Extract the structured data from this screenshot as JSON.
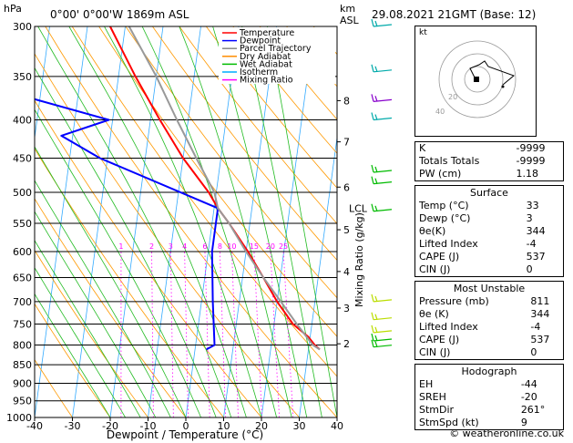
{
  "header": {
    "location": "0°00'  0°00'W  1869m  ASL",
    "hpa_label": "hPa",
    "km_label": "km",
    "asl_label": "ASL",
    "datetime": "29.08.2021  21GMT  (Base: 12)"
  },
  "legend": [
    {
      "label": "Temperature",
      "color": "#ff0000"
    },
    {
      "label": "Dewpoint",
      "color": "#0000ff"
    },
    {
      "label": "Parcel Trajectory",
      "color": "#888888"
    },
    {
      "label": "Dry Adiabat",
      "color": "#ff8c00"
    },
    {
      "label": "Wet Adiabat",
      "color": "#00bb00"
    },
    {
      "label": "Isotherm",
      "color": "#00aaff"
    },
    {
      "label": "Mixing Ratio",
      "color": "#ff00ff"
    }
  ],
  "chart_data": {
    "type": "line",
    "title": "Skew-T log-P diagram",
    "xlabel": "Dewpoint / Temperature (°C)",
    "ylabel": "hPa",
    "right_axis_label": "Mixing Ratio (g/kg)",
    "pressure_levels": [
      300,
      350,
      400,
      450,
      500,
      550,
      600,
      650,
      700,
      750,
      800,
      850,
      900,
      950,
      1000
    ],
    "pressure_tick_labels": [
      "300",
      "350",
      "400",
      "450",
      "500",
      "550",
      "600",
      "650",
      "700",
      "750",
      "800",
      "850",
      "900",
      "950",
      "1000"
    ],
    "x_ticks": [
      -40,
      -30,
      -20,
      -10,
      0,
      10,
      20,
      30,
      40
    ],
    "x_tick_labels": [
      "-40",
      "-30",
      "-20",
      "-10",
      "0",
      "10",
      "20",
      "30",
      "40"
    ],
    "xlim": [
      -40,
      40
    ],
    "ylim": [
      1000,
      300
    ],
    "km_ticks": [
      {
        "km": "8",
        "p": 377
      },
      {
        "km": "7",
        "p": 428
      },
      {
        "km": "6",
        "p": 492
      },
      {
        "km": "5",
        "p": 561
      },
      {
        "km": "4",
        "p": 638
      },
      {
        "km": "3",
        "p": 714
      },
      {
        "km": "2",
        "p": 797
      }
    ],
    "lcl": {
      "label": "LCL",
      "p": 525
    },
    "mixing_ratio_labels": [
      {
        "label": "1",
        "w": 1
      },
      {
        "label": "2",
        "w": 2
      },
      {
        "label": "3",
        "w": 3
      },
      {
        "label": "4",
        "w": 4
      },
      {
        "label": "6",
        "w": 6
      },
      {
        "label": "8",
        "w": 8
      },
      {
        "label": "10",
        "w": 10
      },
      {
        "label": "15",
        "w": 15
      },
      {
        "label": "20",
        "w": 20
      },
      {
        "label": "25",
        "w": 25
      }
    ],
    "series": [
      {
        "name": "Temperature",
        "p": [
          300,
          350,
          400,
          450,
          500,
          525,
          550,
          600,
          650,
          700,
          750,
          780,
          800,
          811
        ],
        "t": [
          -34,
          -25.5,
          -17.5,
          -10,
          -2,
          1,
          4.5,
          10.5,
          15.5,
          20,
          25,
          29.5,
          31.5,
          33
        ]
      },
      {
        "name": "Dewpoint",
        "p": [
          300,
          370,
          400,
          420,
          450,
          525,
          600,
          700,
          800,
          811
        ],
        "t": [
          -59,
          -56,
          -31,
          -43,
          -32,
          1,
          1,
          3,
          5,
          3
        ]
      },
      {
        "name": "Parcel Trajectory",
        "p": [
          300,
          350,
          400,
          450,
          500,
          525,
          550,
          600,
          650,
          700,
          750,
          800,
          811
        ],
        "t": [
          -29,
          -20,
          -13,
          -6.5,
          -0.5,
          1,
          4.5,
          10,
          15.5,
          21,
          26,
          31,
          33
        ]
      }
    ]
  },
  "hodograph": {
    "unit_label": "kt",
    "ring_labels": [
      "20",
      "40"
    ]
  },
  "indices": [
    {
      "label": "K",
      "value": "-9999"
    },
    {
      "label": "Totals Totals",
      "value": "-9999"
    },
    {
      "label": "PW (cm)",
      "value": "1.18"
    }
  ],
  "surface": {
    "title": "Surface",
    "rows": [
      {
        "label": "Temp (°C)",
        "value": "33"
      },
      {
        "label": "Dewp (°C)",
        "value": "3"
      },
      {
        "label": "θe(K)",
        "value": "344"
      },
      {
        "label": "Lifted Index",
        "value": "-4"
      },
      {
        "label": "CAPE (J)",
        "value": "537"
      },
      {
        "label": "CIN (J)",
        "value": "0"
      }
    ]
  },
  "most_unstable": {
    "title": "Most Unstable",
    "rows": [
      {
        "label": "Pressure (mb)",
        "value": "811"
      },
      {
        "label": "θe (K)",
        "value": "344"
      },
      {
        "label": "Lifted Index",
        "value": "-4"
      },
      {
        "label": "CAPE (J)",
        "value": "537"
      },
      {
        "label": "CIN (J)",
        "value": "0"
      }
    ]
  },
  "hodograph_params": {
    "title": "Hodograph",
    "rows": [
      {
        "label": "EH",
        "value": "-44"
      },
      {
        "label": "SREH",
        "value": "-20"
      },
      {
        "label": "StmDir",
        "value": "261°"
      },
      {
        "label": "StmSpd (kt)",
        "value": "9"
      }
    ]
  },
  "credit": "© weatheronline.co.uk"
}
